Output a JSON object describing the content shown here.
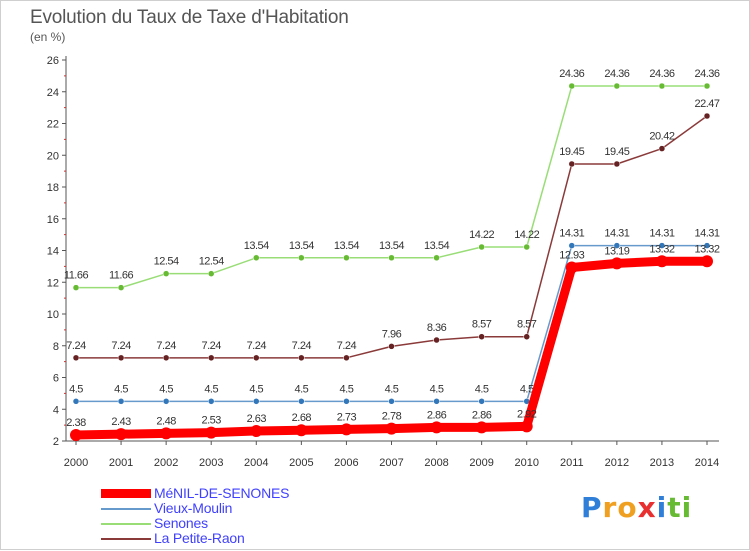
{
  "title": "Evolution du Taux de Taxe d'Habitation",
  "unit_label": "(en %)",
  "logo": {
    "text": "Proxiti",
    "letters": [
      {
        "ch": "P",
        "color": "#2f7fd8"
      },
      {
        "ch": "r",
        "color": "#f0a020"
      },
      {
        "ch": "o",
        "color": "#f0a020"
      },
      {
        "ch": "x",
        "color": "#e83030"
      },
      {
        "ch": "i",
        "color": "#2f7fd8"
      },
      {
        "ch": "t",
        "color": "#66bb33"
      },
      {
        "ch": "i",
        "color": "#66bb33"
      }
    ]
  },
  "chart_data": {
    "type": "line",
    "title": "Evolution du Taux de Taxe d'Habitation",
    "ylabel": "(en %)",
    "xlabel": "",
    "ylim": [
      2,
      26
    ],
    "yticks": [
      2,
      4,
      6,
      8,
      10,
      12,
      14,
      16,
      18,
      20,
      22,
      24,
      26
    ],
    "x": [
      "2000",
      "2001",
      "2002",
      "2003",
      "2004",
      "2005",
      "2006",
      "2007",
      "2008",
      "2009",
      "2010",
      "2011",
      "2012",
      "2013",
      "2014"
    ],
    "grid": false,
    "legend_position": "bottom-left",
    "series": [
      {
        "name": "Senones",
        "color": "#99dd77",
        "marker": "#66bb33",
        "values": [
          11.66,
          11.66,
          12.54,
          12.54,
          13.54,
          13.54,
          13.54,
          13.54,
          13.54,
          14.22,
          14.22,
          24.36,
          24.36,
          24.36,
          24.36
        ],
        "labels": [
          "11.66",
          "11.66",
          "12.54",
          "12.54",
          "13.54",
          "13.54",
          "13.54",
          "13.54",
          "13.54",
          "14.22",
          "14.22",
          "24.36",
          "24.36",
          "24.36",
          "24.36"
        ]
      },
      {
        "name": "La Petite-Raon",
        "color": "#8b3a3a",
        "marker": "#662222",
        "values": [
          7.24,
          7.24,
          7.24,
          7.24,
          7.24,
          7.24,
          7.24,
          7.96,
          8.36,
          8.57,
          8.57,
          19.45,
          19.45,
          20.42,
          22.47
        ],
        "labels": [
          "7.24",
          "7.24",
          "7.24",
          "7.24",
          "7.24",
          "7.24",
          "7.24",
          "7.96",
          "8.36",
          "8.57",
          "8.57",
          "19.45",
          "19.45",
          "20.42",
          "22.47"
        ]
      },
      {
        "name": "Vieux-Moulin",
        "color": "#6699cc",
        "marker": "#3377bb",
        "values": [
          4.5,
          4.5,
          4.5,
          4.5,
          4.5,
          4.5,
          4.5,
          4.5,
          4.5,
          4.5,
          4.5,
          14.31,
          14.31,
          14.31,
          14.31
        ],
        "labels": [
          "4.5",
          "4.5",
          "4.5",
          "4.5",
          "4.5",
          "4.5",
          "4.5",
          "4.5",
          "4.5",
          "4.5",
          "4.5",
          "14.31",
          "14.31",
          "14.31",
          "14.31"
        ]
      },
      {
        "name": "MéNIL-DE-SENONES",
        "color": "#ff0000",
        "marker": "#ff0000",
        "values": [
          2.38,
          2.43,
          2.48,
          2.53,
          2.63,
          2.68,
          2.73,
          2.78,
          2.86,
          2.86,
          2.92,
          12.93,
          13.19,
          13.32,
          13.32
        ],
        "labels": [
          "2.38",
          "2.43",
          "2.48",
          "2.53",
          "2.63",
          "2.68",
          "2.73",
          "2.78",
          "2.86",
          "2.86",
          "2.92",
          "12.93",
          "13.19",
          "13.32",
          "13.32"
        ]
      }
    ],
    "legend_order": [
      "MéNIL-DE-SENONES",
      "Vieux-Moulin",
      "Senones",
      "La Petite-Raon"
    ]
  }
}
